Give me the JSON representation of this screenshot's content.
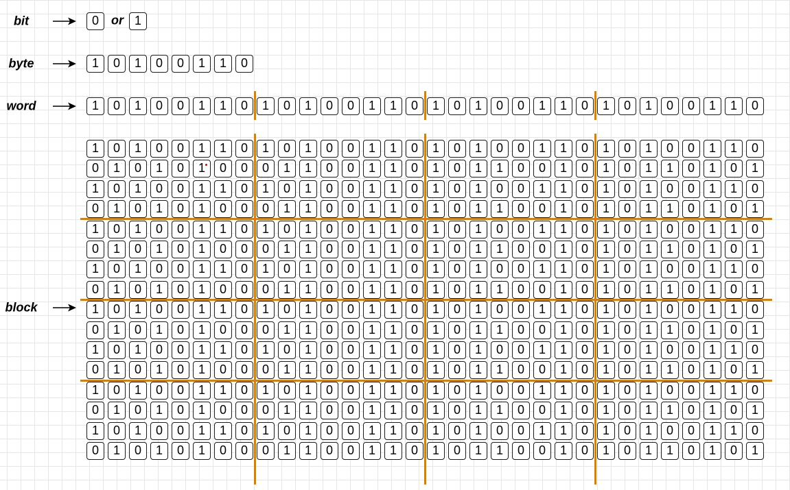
{
  "labels": {
    "bit": "bit",
    "byte": "byte",
    "word": "word",
    "block": "block",
    "or": "or"
  },
  "bit_values": [
    "0",
    "1"
  ],
  "byte_bits": "10100110",
  "word_bits": "10100110101001101010011010100110",
  "block_rows": [
    "10100110101001101010011010100110",
    "01010100011001101011001010110101",
    "10100110101001101010011010100110",
    "01010100011001101011001010110101",
    "10100110101001101010011010100110",
    "01010100011001101011001010110101",
    "10100110101001101010011010100110",
    "01010100011001101011001010110101",
    "10100110101001101010011010100110",
    "01010100011001101011001010110101",
    "10100110101001101010011010100110",
    "01010100011001101011001010110101",
    "10100110101001101010011010100110",
    "01010100011001101011001010110101",
    "10100110101001101010011010100110",
    "01010100011001101011001010110101"
  ],
  "colors": {
    "divider": "#c8821e",
    "cell_border": "#1a1a1a",
    "marker": "#e00000"
  }
}
